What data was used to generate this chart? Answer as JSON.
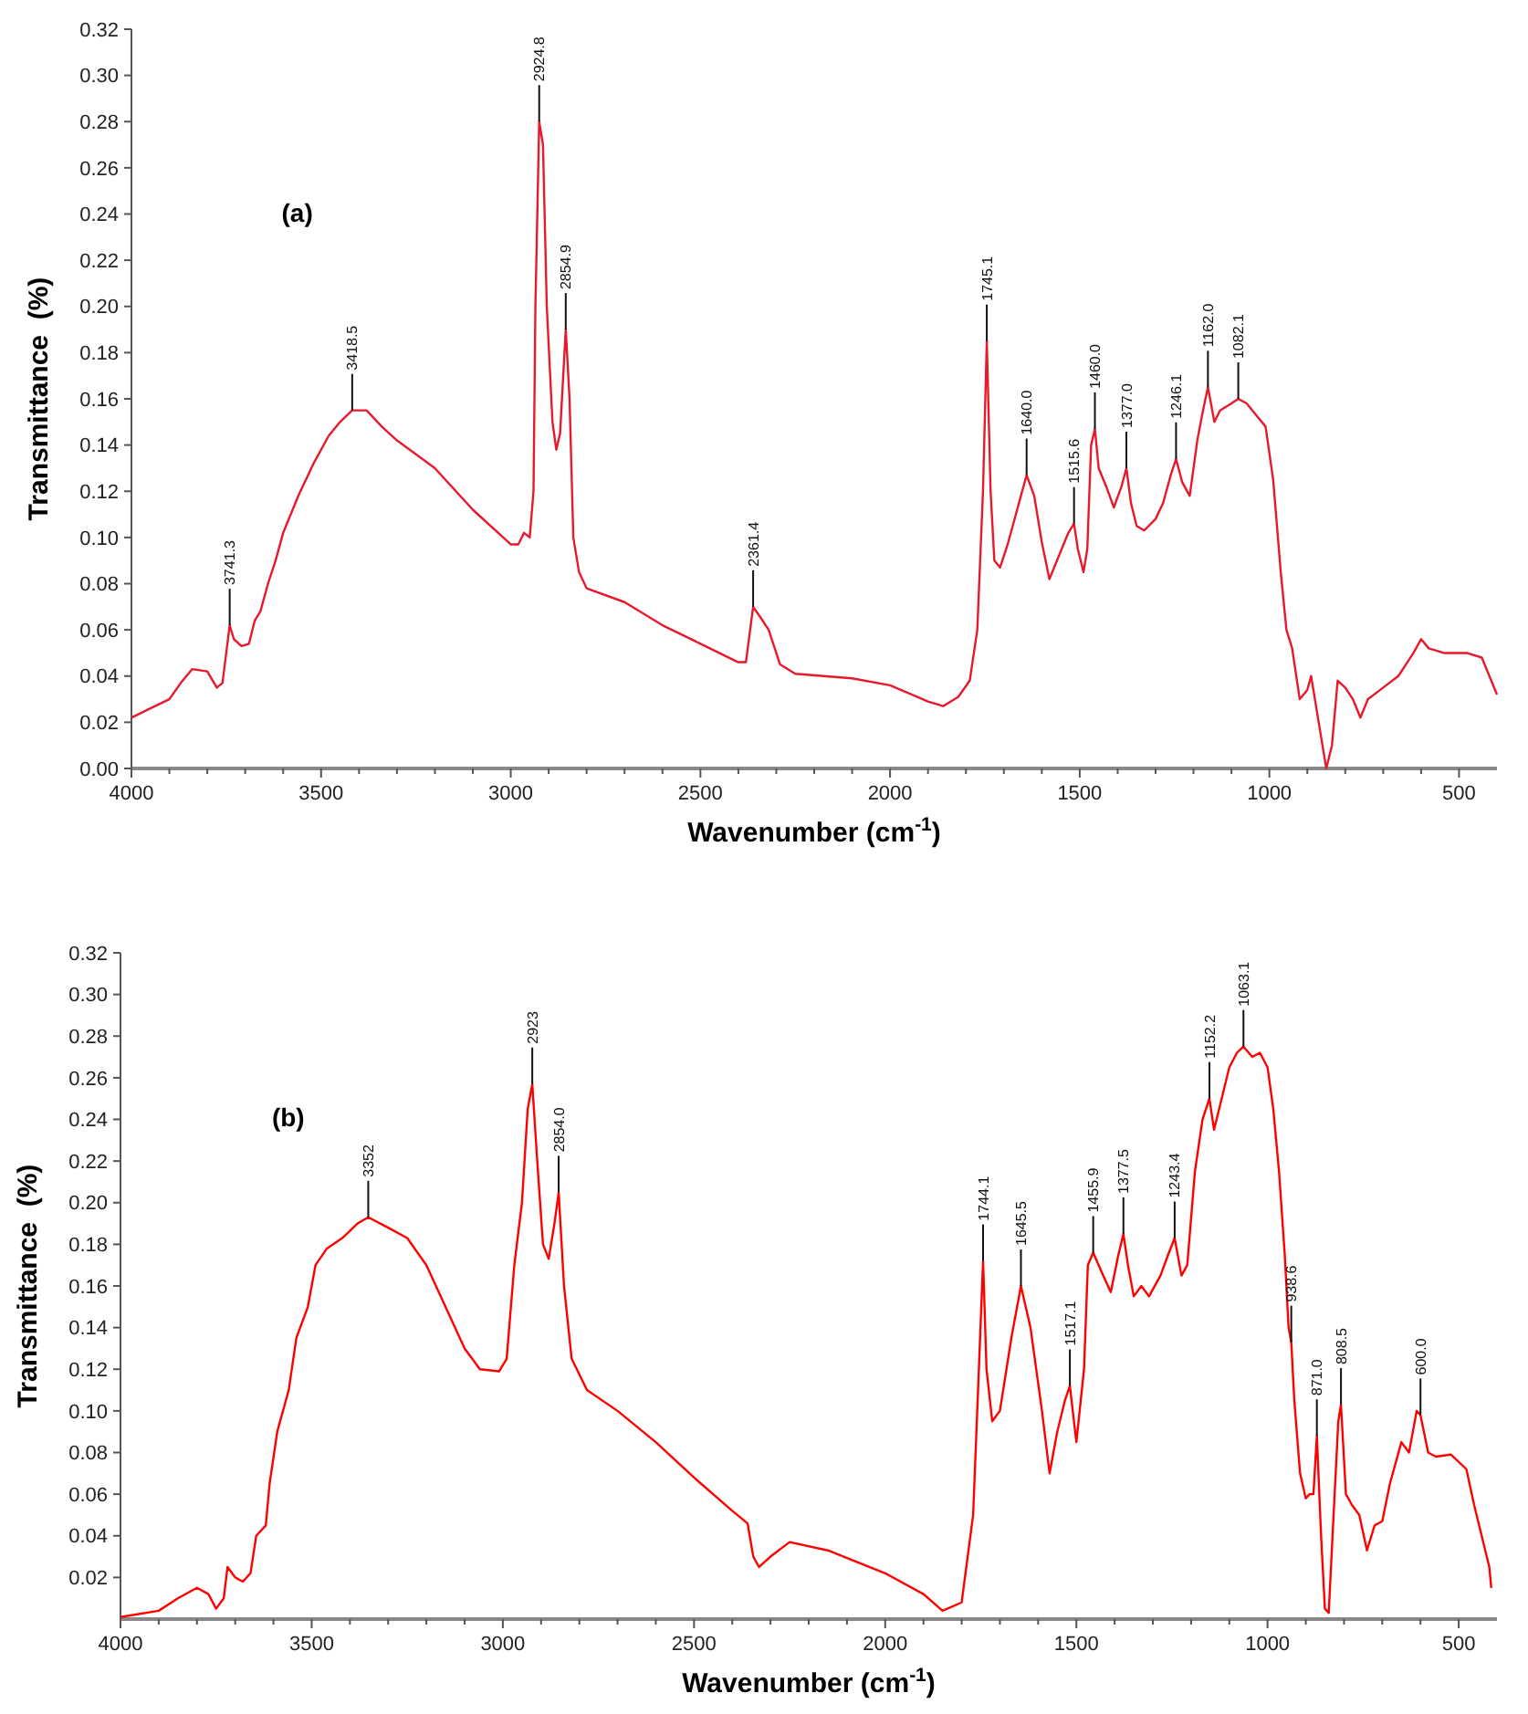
{
  "chart_data": [
    {
      "type": "line",
      "title": "(a)",
      "xlabel": "Wavenumber (cm$^{-1}$)",
      "ylabel": "Transmittance  (%)",
      "xlim": [
        4000,
        400
      ],
      "ylim": [
        0,
        0.32
      ],
      "xticks": [
        {
          "value": 4000,
          "label": "4000"
        },
        {
          "value": 3900,
          "label": null
        },
        {
          "value": 3800,
          "label": null
        },
        {
          "value": 3700,
          "label": null
        },
        {
          "value": 3600,
          "label": null
        },
        {
          "value": 3500,
          "label": "3500"
        },
        {
          "value": 3400,
          "label": null
        },
        {
          "value": 3300,
          "label": null
        },
        {
          "value": 3200,
          "label": null
        },
        {
          "value": 3100,
          "label": null
        },
        {
          "value": 3000,
          "label": "3000"
        },
        {
          "value": 2900,
          "label": null
        },
        {
          "value": 2800,
          "label": null
        },
        {
          "value": 2700,
          "label": null
        },
        {
          "value": 2600,
          "label": null
        },
        {
          "value": 2500,
          "label": "2500"
        },
        {
          "value": 2400,
          "label": null
        },
        {
          "value": 2300,
          "label": null
        },
        {
          "value": 2200,
          "label": null
        },
        {
          "value": 2100,
          "label": null
        },
        {
          "value": 2000,
          "label": "2000"
        },
        {
          "value": 1900,
          "label": null
        },
        {
          "value": 1800,
          "label": null
        },
        {
          "value": 1700,
          "label": null
        },
        {
          "value": 1600,
          "label": null
        },
        {
          "value": 1500,
          "label": "1500"
        },
        {
          "value": 1400,
          "label": null
        },
        {
          "value": 1300,
          "label": null
        },
        {
          "value": 1200,
          "label": null
        },
        {
          "value": 1100,
          "label": null
        },
        {
          "value": 1000,
          "label": "1000"
        },
        {
          "value": 900,
          "label": null
        },
        {
          "value": 800,
          "label": null
        },
        {
          "value": 700,
          "label": null
        },
        {
          "value": 600,
          "label": null
        },
        {
          "value": 500,
          "label": "500"
        }
      ],
      "yticks": [
        {
          "value": 0,
          "label": "0.00"
        },
        {
          "value": 0.02,
          "label": "0.02"
        },
        {
          "value": 0.04,
          "label": "0.04"
        },
        {
          "value": 0.06,
          "label": "0.06"
        },
        {
          "value": 0.08,
          "label": "0.08"
        },
        {
          "value": 0.1,
          "label": "0.10"
        },
        {
          "value": 0.12,
          "label": "0.12"
        },
        {
          "value": 0.14,
          "label": "0.14"
        },
        {
          "value": 0.16,
          "label": "0.16"
        },
        {
          "value": 0.18,
          "label": "0.18"
        },
        {
          "value": 0.2,
          "label": "0.20"
        },
        {
          "value": 0.22,
          "label": "0.22"
        },
        {
          "value": 0.24,
          "label": "0.24"
        },
        {
          "value": 0.26,
          "label": "0.26"
        },
        {
          "value": 0.28,
          "label": "0.28"
        },
        {
          "value": 0.3,
          "label": "0.30"
        },
        {
          "value": 0.32,
          "label": "0.32"
        }
      ],
      "grid": false,
      "marker": "none",
      "line_style": "solid",
      "series": [
        {
          "color": "#e8192c",
          "x": [
            4000,
            3950,
            3900,
            3870,
            3840,
            3800,
            3775,
            3760,
            3741,
            3730,
            3710,
            3690,
            3675,
            3660,
            3640,
            3620,
            3600,
            3560,
            3520,
            3480,
            3450,
            3418,
            3380,
            3340,
            3300,
            3200,
            3100,
            3000,
            2980,
            2965,
            2950,
            2940,
            2935,
            2925,
            2915,
            2905,
            2890,
            2880,
            2870,
            2855,
            2845,
            2835,
            2820,
            2800,
            2700,
            2600,
            2500,
            2400,
            2380,
            2361,
            2340,
            2320,
            2290,
            2250,
            2100,
            2000,
            1900,
            1860,
            1820,
            1790,
            1770,
            1755,
            1745,
            1735,
            1725,
            1710,
            1690,
            1660,
            1640,
            1620,
            1600,
            1580,
            1560,
            1530,
            1515,
            1505,
            1490,
            1480,
            1470,
            1460,
            1450,
            1430,
            1410,
            1390,
            1377,
            1365,
            1350,
            1330,
            1300,
            1280,
            1260,
            1246,
            1230,
            1210,
            1190,
            1175,
            1162,
            1145,
            1130,
            1100,
            1082,
            1060,
            1040,
            1010,
            990,
            970,
            955,
            940,
            920,
            900,
            890,
            870,
            850,
            835,
            820,
            800,
            780,
            760,
            740,
            700,
            660,
            620,
            600,
            580,
            540,
            480,
            440,
            420,
            400
          ],
          "values": [
            0.022,
            0.026,
            0.03,
            0.037,
            0.043,
            0.042,
            0.035,
            0.037,
            0.062,
            0.056,
            0.053,
            0.054,
            0.064,
            0.068,
            0.08,
            0.09,
            0.102,
            0.118,
            0.132,
            0.144,
            0.15,
            0.155,
            0.155,
            0.148,
            0.142,
            0.13,
            0.112,
            0.097,
            0.097,
            0.102,
            0.1,
            0.12,
            0.2,
            0.28,
            0.27,
            0.2,
            0.15,
            0.138,
            0.145,
            0.19,
            0.16,
            0.1,
            0.085,
            0.078,
            0.072,
            0.062,
            0.054,
            0.046,
            0.046,
            0.07,
            0.065,
            0.06,
            0.045,
            0.041,
            0.039,
            0.036,
            0.029,
            0.027,
            0.031,
            0.038,
            0.06,
            0.12,
            0.185,
            0.12,
            0.09,
            0.087,
            0.097,
            0.115,
            0.127,
            0.118,
            0.098,
            0.082,
            0.09,
            0.102,
            0.106,
            0.095,
            0.085,
            0.095,
            0.14,
            0.147,
            0.13,
            0.122,
            0.113,
            0.122,
            0.13,
            0.115,
            0.105,
            0.103,
            0.108,
            0.115,
            0.127,
            0.134,
            0.124,
            0.118,
            0.142,
            0.155,
            0.165,
            0.15,
            0.155,
            0.158,
            0.16,
            0.158,
            0.154,
            0.148,
            0.125,
            0.085,
            0.06,
            0.052,
            0.03,
            0.034,
            0.04,
            0.02,
            0,
            0.01,
            0.038,
            0.035,
            0.03,
            0.022,
            0.03,
            0.035,
            0.04,
            0.05,
            0.056,
            0.052,
            0.05,
            0.05,
            0.048,
            0.04,
            0.032
          ]
        }
      ],
      "annotations": [
        {
          "text": "3741.3",
          "x": 3741,
          "y": 0.062
        },
        {
          "text": "3418.5",
          "x": 3418,
          "y": 0.155
        },
        {
          "text": "2924.8",
          "x": 2925,
          "y": 0.28
        },
        {
          "text": "2854.9",
          "x": 2855,
          "y": 0.19
        },
        {
          "text": "2361.4",
          "x": 2361,
          "y": 0.07
        },
        {
          "text": "1745.1",
          "x": 1745,
          "y": 0.185
        },
        {
          "text": "1640.0",
          "x": 1640,
          "y": 0.127
        },
        {
          "text": "1515.6",
          "x": 1515,
          "y": 0.106
        },
        {
          "text": "1460.0",
          "x": 1460,
          "y": 0.147
        },
        {
          "text": "1377.0",
          "x": 1377,
          "y": 0.13
        },
        {
          "text": "1246.1",
          "x": 1246,
          "y": 0.134
        },
        {
          "text": "1162.0",
          "x": 1162,
          "y": 0.165
        },
        {
          "text": "1082.1",
          "x": 1082,
          "y": 0.16
        }
      ]
    },
    {
      "type": "line",
      "title": "(b)",
      "xlabel": "Wavenumber (cm$^{-1}$)",
      "ylabel": "Transmittance  (%)",
      "xlim": [
        4000,
        400
      ],
      "ylim": [
        0,
        0.32
      ],
      "xticks": [
        {
          "value": 4000,
          "label": "4000"
        },
        {
          "value": 3900,
          "label": null
        },
        {
          "value": 3800,
          "label": null
        },
        {
          "value": 3700,
          "label": null
        },
        {
          "value": 3600,
          "label": null
        },
        {
          "value": 3500,
          "label": "3500"
        },
        {
          "value": 3400,
          "label": null
        },
        {
          "value": 3300,
          "label": null
        },
        {
          "value": 3200,
          "label": null
        },
        {
          "value": 3100,
          "label": null
        },
        {
          "value": 3000,
          "label": "3000"
        },
        {
          "value": 2900,
          "label": null
        },
        {
          "value": 2800,
          "label": null
        },
        {
          "value": 2700,
          "label": null
        },
        {
          "value": 2600,
          "label": null
        },
        {
          "value": 2500,
          "label": "2500"
        },
        {
          "value": 2400,
          "label": null
        },
        {
          "value": 2300,
          "label": null
        },
        {
          "value": 2200,
          "label": null
        },
        {
          "value": 2100,
          "label": null
        },
        {
          "value": 2000,
          "label": "2000"
        },
        {
          "value": 1900,
          "label": null
        },
        {
          "value": 1800,
          "label": null
        },
        {
          "value": 1700,
          "label": null
        },
        {
          "value": 1600,
          "label": null
        },
        {
          "value": 1500,
          "label": "1500"
        },
        {
          "value": 1400,
          "label": null
        },
        {
          "value": 1300,
          "label": null
        },
        {
          "value": 1200,
          "label": null
        },
        {
          "value": 1100,
          "label": null
        },
        {
          "value": 1000,
          "label": "1000"
        },
        {
          "value": 900,
          "label": null
        },
        {
          "value": 800,
          "label": null
        },
        {
          "value": 700,
          "label": null
        },
        {
          "value": 600,
          "label": null
        },
        {
          "value": 500,
          "label": "500"
        }
      ],
      "yticks": [
        {
          "value": 0.02,
          "label": "0.02"
        },
        {
          "value": 0.04,
          "label": "0.04"
        },
        {
          "value": 0.06,
          "label": "0.06"
        },
        {
          "value": 0.08,
          "label": "0.08"
        },
        {
          "value": 0.1,
          "label": "0.10"
        },
        {
          "value": 0.12,
          "label": "0.12"
        },
        {
          "value": 0.14,
          "label": "0.14"
        },
        {
          "value": 0.16,
          "label": "0.16"
        },
        {
          "value": 0.18,
          "label": "0.18"
        },
        {
          "value": 0.2,
          "label": "0.20"
        },
        {
          "value": 0.22,
          "label": "0.22"
        },
        {
          "value": 0.24,
          "label": "0.24"
        },
        {
          "value": 0.26,
          "label": "0.26"
        },
        {
          "value": 0.28,
          "label": "0.28"
        },
        {
          "value": 0.3,
          "label": "0.30"
        },
        {
          "value": 0.32,
          "label": "0.32"
        }
      ],
      "grid": false,
      "marker": "none",
      "line_style": "solid",
      "series": [
        {
          "color": "#ff0000",
          "x": [
            4000,
            3900,
            3850,
            3800,
            3770,
            3750,
            3730,
            3720,
            3700,
            3680,
            3660,
            3645,
            3620,
            3610,
            3590,
            3560,
            3540,
            3510,
            3490,
            3460,
            3420,
            3380,
            3352,
            3300,
            3250,
            3200,
            3150,
            3100,
            3060,
            3010,
            2990,
            2970,
            2950,
            2935,
            2923,
            2910,
            2895,
            2880,
            2865,
            2854,
            2840,
            2820,
            2780,
            2700,
            2600,
            2500,
            2400,
            2360,
            2345,
            2330,
            2300,
            2250,
            2150,
            2000,
            1900,
            1850,
            1800,
            1770,
            1755,
            1744,
            1735,
            1720,
            1700,
            1670,
            1645,
            1620,
            1590,
            1570,
            1550,
            1530,
            1517,
            1500,
            1480,
            1470,
            1456,
            1430,
            1410,
            1390,
            1377,
            1365,
            1350,
            1330,
            1310,
            1280,
            1260,
            1243,
            1225,
            1210,
            1190,
            1170,
            1152,
            1140,
            1120,
            1100,
            1080,
            1063,
            1040,
            1020,
            1000,
            985,
            970,
            955,
            945,
            938,
            930,
            915,
            900,
            890,
            880,
            871,
            860,
            850,
            840,
            830,
            815,
            808,
            795,
            780,
            760,
            740,
            720,
            700,
            680,
            650,
            630,
            610,
            600,
            580,
            560,
            520,
            480,
            460,
            440,
            420,
            415
          ],
          "values": [
            0.001,
            0.004,
            0.01,
            0.015,
            0.012,
            0.005,
            0.01,
            0.025,
            0.02,
            0.018,
            0.022,
            0.04,
            0.045,
            0.065,
            0.09,
            0.11,
            0.135,
            0.15,
            0.17,
            0.178,
            0.183,
            0.19,
            0.193,
            0.188,
            0.183,
            0.17,
            0.15,
            0.13,
            0.12,
            0.119,
            0.125,
            0.17,
            0.2,
            0.245,
            0.257,
            0.22,
            0.18,
            0.173,
            0.19,
            0.205,
            0.16,
            0.125,
            0.11,
            0.1,
            0.085,
            0.068,
            0.052,
            0.046,
            0.03,
            0.025,
            0.03,
            0.037,
            0.033,
            0.022,
            0.012,
            0.004,
            0.008,
            0.05,
            0.12,
            0.172,
            0.12,
            0.095,
            0.1,
            0.135,
            0.16,
            0.14,
            0.1,
            0.07,
            0.09,
            0.105,
            0.112,
            0.085,
            0.12,
            0.17,
            0.176,
            0.165,
            0.157,
            0.175,
            0.185,
            0.17,
            0.155,
            0.16,
            0.155,
            0.165,
            0.175,
            0.183,
            0.165,
            0.17,
            0.215,
            0.24,
            0.25,
            0.235,
            0.25,
            0.265,
            0.272,
            0.275,
            0.27,
            0.272,
            0.265,
            0.245,
            0.215,
            0.175,
            0.14,
            0.133,
            0.105,
            0.07,
            0.058,
            0.06,
            0.06,
            0.088,
            0.04,
            0.005,
            0.003,
            0.04,
            0.095,
            0.103,
            0.06,
            0.055,
            0.05,
            0.033,
            0.045,
            0.047,
            0.065,
            0.085,
            0.08,
            0.1,
            0.098,
            0.08,
            0.078,
            0.079,
            0.072,
            0.055,
            0.04,
            0.025,
            0.015
          ]
        }
      ],
      "annotations": [
        {
          "text": "3352",
          "x": 3352,
          "y": 0.193
        },
        {
          "text": "2923",
          "x": 2923,
          "y": 0.257
        },
        {
          "text": "2854.0",
          "x": 2854,
          "y": 0.205
        },
        {
          "text": "1744.1",
          "x": 1744,
          "y": 0.172
        },
        {
          "text": "1645.5",
          "x": 1645,
          "y": 0.16
        },
        {
          "text": "1517.1",
          "x": 1517,
          "y": 0.112
        },
        {
          "text": "1455.9",
          "x": 1456,
          "y": 0.176
        },
        {
          "text": "1377.5",
          "x": 1377,
          "y": 0.185
        },
        {
          "text": "1243.4",
          "x": 1243,
          "y": 0.183
        },
        {
          "text": "1152.2",
          "x": 1152,
          "y": 0.25
        },
        {
          "text": "1063.1",
          "x": 1063,
          "y": 0.275
        },
        {
          "text": "938.6",
          "x": 938,
          "y": 0.133
        },
        {
          "text": "871.0",
          "x": 871,
          "y": 0.088
        },
        {
          "text": "808.5",
          "x": 808,
          "y": 0.103
        },
        {
          "text": "600.0",
          "x": 600,
          "y": 0.098
        }
      ]
    }
  ]
}
